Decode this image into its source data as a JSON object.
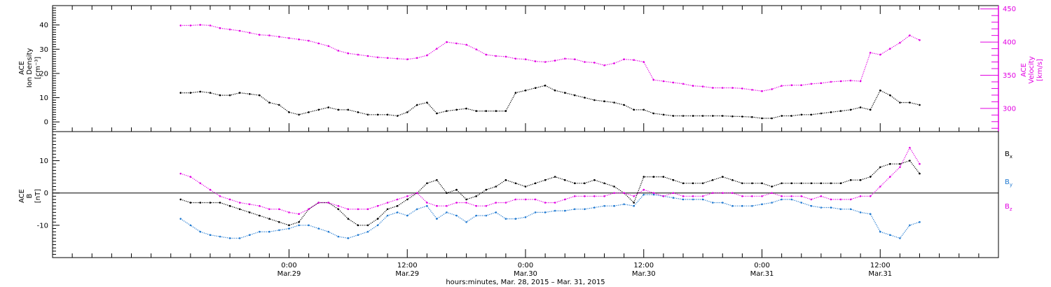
{
  "colors": {
    "frame": "#000000",
    "density": "#000000",
    "velocity": "#e200e2",
    "bx": "#000000",
    "by": "#1e78d0",
    "bz": "#e200e2"
  },
  "x_axis": {
    "title": "hours:minutes, Mar. 28, 2015 – Mar. 31, 2015",
    "range_hours": [
      0,
      96
    ],
    "ticks": [
      {
        "t": 24,
        "time": "0:00",
        "date": "Mar.29"
      },
      {
        "t": 36,
        "time": "12:00",
        "date": "Mar.29"
      },
      {
        "t": 48,
        "time": "0:00",
        "date": "Mar.30"
      },
      {
        "t": 60,
        "time": "12:00",
        "date": "Mar.30"
      },
      {
        "t": 72,
        "time": "0:00",
        "date": "Mar.31"
      },
      {
        "t": 84,
        "time": "12:00",
        "date": "Mar.31"
      }
    ],
    "minor_tick_step_hours": 2
  },
  "chart_data": [
    {
      "type": "scatter",
      "panel": "plasma",
      "left_axis": {
        "label_lines": [
          "ACE",
          "Ion Density",
          "[cm⁻³]"
        ],
        "ylim": [
          -4,
          48
        ],
        "ticks": [
          0,
          10,
          20,
          30,
          40
        ]
      },
      "right_axis": {
        "label_lines": [
          "ACE",
          "Velocity",
          "[km/s]"
        ],
        "ylim": [
          265,
          455
        ],
        "ticks": [
          300,
          350,
          400,
          450
        ]
      },
      "grid": false,
      "series": [
        {
          "key": "density",
          "axis": "left",
          "x": [
            13,
            14,
            15,
            16,
            17,
            18,
            19,
            20,
            21,
            22,
            23,
            24,
            25,
            26,
            27,
            28,
            29,
            30,
            31,
            32,
            33,
            34,
            35,
            36,
            37,
            38,
            39,
            40,
            41,
            42,
            43,
            44,
            45,
            46,
            47,
            48,
            49,
            50,
            51,
            52,
            53,
            54,
            55,
            56,
            57,
            58,
            59,
            60,
            61,
            62,
            63,
            64,
            65,
            66,
            67,
            68,
            69,
            70,
            71,
            72,
            73,
            74,
            75,
            76,
            77,
            78,
            79,
            80,
            81,
            82,
            83,
            84,
            85,
            86,
            87,
            88
          ],
          "y": [
            12,
            12,
            12.5,
            12,
            11,
            11,
            12,
            11.5,
            11,
            8,
            7,
            4,
            3,
            4,
            5,
            6,
            5,
            5,
            4,
            3,
            3,
            3,
            2.5,
            4,
            7,
            8,
            3.5,
            4.5,
            5,
            5.5,
            4.5,
            4.5,
            4.5,
            4.5,
            12,
            13,
            14,
            15,
            13,
            12,
            11,
            10,
            9,
            8.5,
            8,
            7,
            5,
            5,
            3.5,
            3,
            2.5,
            2.5,
            2.5,
            2.5,
            2.5,
            2.5,
            2.3,
            2.2,
            2,
            1.5,
            1.5,
            2.5,
            2.5,
            3,
            3,
            3.5,
            4,
            4.5,
            5,
            6,
            5,
            13,
            11,
            8,
            8,
            7
          ]
        },
        {
          "key": "velocity",
          "axis": "right",
          "x": [
            13,
            14,
            15,
            16,
            17,
            18,
            19,
            20,
            21,
            22,
            23,
            24,
            25,
            26,
            27,
            28,
            29,
            30,
            31,
            32,
            33,
            34,
            35,
            36,
            37,
            38,
            39,
            40,
            41,
            42,
            43,
            44,
            45,
            46,
            47,
            48,
            49,
            50,
            51,
            52,
            53,
            54,
            55,
            56,
            57,
            58,
            59,
            60,
            61,
            62,
            63,
            64,
            65,
            66,
            67,
            68,
            69,
            70,
            71,
            72,
            73,
            74,
            75,
            76,
            77,
            78,
            79,
            80,
            81,
            82,
            83,
            84,
            85,
            86,
            87,
            88
          ],
          "y": [
            425,
            425,
            426,
            425,
            421,
            419,
            417,
            414,
            411,
            410,
            408,
            406,
            404,
            402,
            398,
            394,
            387,
            383,
            381,
            379,
            377,
            376,
            375,
            374,
            376,
            380,
            390,
            400,
            398,
            396,
            389,
            381,
            379,
            378,
            375,
            374,
            371,
            370,
            372,
            375,
            374,
            370,
            369,
            365,
            368,
            374,
            373,
            370,
            343,
            341,
            339,
            337,
            334,
            333,
            331,
            331,
            331,
            330,
            328,
            326,
            329,
            334,
            335,
            335,
            337,
            338,
            340,
            341,
            342,
            341,
            384,
            381,
            390,
            399,
            410,
            403
          ]
        }
      ]
    },
    {
      "type": "scatter",
      "panel": "magnetic-field",
      "left_axis": {
        "label_lines": [
          "ACE",
          "B",
          "[nT]"
        ],
        "ylim": [
          -20,
          19
        ],
        "ticks": [
          -10,
          0,
          10
        ]
      },
      "zero_line": true,
      "grid": false,
      "legend": {
        "placement": "right",
        "items": [
          {
            "key": "bx",
            "name": "B",
            "sub": "x"
          },
          {
            "key": "by",
            "name": "B",
            "sub": "y"
          },
          {
            "key": "bz",
            "name": "B",
            "sub": "z"
          }
        ]
      },
      "series": [
        {
          "key": "bx",
          "x": [
            13,
            14,
            15,
            16,
            17,
            18,
            19,
            20,
            21,
            22,
            23,
            24,
            25,
            26,
            27,
            28,
            29,
            30,
            31,
            32,
            33,
            34,
            35,
            36,
            37,
            38,
            39,
            40,
            41,
            42,
            43,
            44,
            45,
            46,
            47,
            48,
            49,
            50,
            51,
            52,
            53,
            54,
            55,
            56,
            57,
            58,
            59,
            60,
            61,
            62,
            63,
            64,
            65,
            66,
            67,
            68,
            69,
            70,
            71,
            72,
            73,
            74,
            75,
            76,
            77,
            78,
            79,
            80,
            81,
            82,
            83,
            84,
            85,
            86,
            87,
            88
          ],
          "y": [
            -2,
            -3,
            -3,
            -3,
            -3,
            -4,
            -5,
            -6,
            -7,
            -8,
            -9,
            -10,
            -9,
            -5,
            -3,
            -3,
            -5,
            -8,
            -10,
            -10,
            -8,
            -5,
            -4,
            -2,
            0,
            3,
            4,
            0,
            1,
            -2,
            -1,
            1,
            2,
            4,
            3,
            2,
            3,
            4,
            5,
            4,
            3,
            3,
            4,
            3,
            2,
            0,
            -3,
            5,
            5,
            5,
            4,
            3,
            3,
            3,
            4,
            5,
            4,
            3,
            3,
            3,
            2,
            3,
            3,
            3,
            3,
            3,
            3,
            3,
            4,
            4,
            5,
            8,
            9,
            9,
            10,
            6
          ]
        },
        {
          "key": "by",
          "x": [
            13,
            14,
            15,
            16,
            17,
            18,
            19,
            20,
            21,
            22,
            23,
            24,
            25,
            26,
            27,
            28,
            29,
            30,
            31,
            32,
            33,
            34,
            35,
            36,
            37,
            38,
            39,
            40,
            41,
            42,
            43,
            44,
            45,
            46,
            47,
            48,
            49,
            50,
            51,
            52,
            53,
            54,
            55,
            56,
            57,
            58,
            59,
            60,
            61,
            62,
            63,
            64,
            65,
            66,
            67,
            68,
            69,
            70,
            71,
            72,
            73,
            74,
            75,
            76,
            77,
            78,
            79,
            80,
            81,
            82,
            83,
            84,
            85,
            86,
            87,
            88
          ],
          "y": [
            -8,
            -10,
            -12,
            -13,
            -13.5,
            -14,
            -14,
            -13,
            -12,
            -12,
            -11.5,
            -11,
            -10,
            -10,
            -11,
            -12,
            -13.5,
            -14,
            -13,
            -12,
            -10,
            -7,
            -6,
            -7,
            -5,
            -4,
            -8,
            -6,
            -7,
            -9,
            -7,
            -7,
            -6,
            -8,
            -8,
            -7.5,
            -6,
            -6,
            -5.5,
            -5.5,
            -5,
            -5,
            -4.5,
            -4,
            -4,
            -3.5,
            -4,
            -0.5,
            -0.5,
            -1,
            -1.5,
            -2,
            -2,
            -2,
            -3,
            -3,
            -4,
            -4,
            -4,
            -3.5,
            -3,
            -2,
            -2,
            -3,
            -4,
            -4.5,
            -4.5,
            -5,
            -5,
            -6,
            -6.5,
            -12,
            -13,
            -14,
            -10,
            -9
          ]
        },
        {
          "key": "bz",
          "x": [
            13,
            14,
            15,
            16,
            17,
            18,
            19,
            20,
            21,
            22,
            23,
            24,
            25,
            26,
            27,
            28,
            29,
            30,
            31,
            32,
            33,
            34,
            35,
            36,
            37,
            38,
            39,
            40,
            41,
            42,
            43,
            44,
            45,
            46,
            47,
            48,
            49,
            50,
            51,
            52,
            53,
            54,
            55,
            56,
            57,
            58,
            59,
            60,
            61,
            62,
            63,
            64,
            65,
            66,
            67,
            68,
            69,
            70,
            71,
            72,
            73,
            74,
            75,
            76,
            77,
            78,
            79,
            80,
            81,
            82,
            83,
            84,
            85,
            86,
            87,
            88
          ],
          "y": [
            6,
            5,
            3,
            1,
            -1,
            -2,
            -3,
            -3.5,
            -4,
            -5,
            -5,
            -6,
            -6.5,
            -5,
            -3,
            -3,
            -4,
            -5,
            -5,
            -5,
            -4,
            -3,
            -2,
            -1,
            0,
            -3,
            -4,
            -4,
            -3,
            -3,
            -4,
            -4,
            -3,
            -3,
            -2,
            -2,
            -2,
            -3,
            -3,
            -2,
            -1,
            -1,
            -1,
            -1,
            0,
            0,
            -1,
            1,
            0,
            -1,
            0,
            -1,
            -1,
            -1,
            0,
            0,
            0,
            -1,
            -1,
            -1,
            0,
            -1,
            -1,
            -1,
            -2,
            -1,
            -2,
            -2,
            -2,
            -1,
            -1,
            2,
            5,
            8,
            14,
            9
          ]
        }
      ]
    }
  ]
}
